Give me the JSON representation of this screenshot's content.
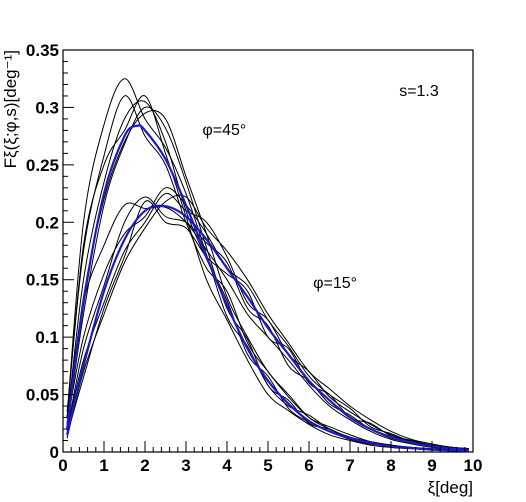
{
  "chart_data": {
    "type": "line",
    "title": "",
    "xlabel": "ξ[deg]",
    "ylabel": "Fξ(ξ;φ,s)[deg⁻¹]",
    "xlim": [
      0,
      10
    ],
    "ylim": [
      0,
      0.35
    ],
    "grid": false,
    "x_ticks": [
      "0",
      "1",
      "2",
      "3",
      "4",
      "5",
      "6",
      "7",
      "8",
      "9",
      "10"
    ],
    "y_ticks": [
      "0",
      "0.05",
      "0.1",
      "0.15",
      "0.2",
      "0.25",
      "0.3",
      "0.35"
    ],
    "annotations": [
      {
        "text": "s=1.3",
        "x": 8.2,
        "y": 0.31
      },
      {
        "text": "φ=45°",
        "x": 3.4,
        "y": 0.276
      },
      {
        "text": "φ=15°",
        "x": 6.1,
        "y": 0.143
      }
    ],
    "series": [
      {
        "color": "#1a1acc",
        "width": 2.2,
        "group": "mean-45",
        "x": [
          0.1,
          0.5,
          1.0,
          1.5,
          1.8,
          2.0,
          2.5,
          3.0,
          3.5,
          4.0,
          4.5,
          5.0,
          5.5,
          6.0,
          6.5,
          7.0,
          7.5,
          8.0,
          8.5,
          9.0,
          9.5,
          9.9
        ],
        "y": [
          0.02,
          0.13,
          0.225,
          0.275,
          0.284,
          0.28,
          0.255,
          0.215,
          0.17,
          0.128,
          0.09,
          0.062,
          0.042,
          0.027,
          0.018,
          0.012,
          0.008,
          0.005,
          0.0035,
          0.002,
          0.0015,
          0.001
        ]
      },
      {
        "color": "#1a1acc",
        "width": 2.2,
        "group": "mean-15",
        "x": [
          0.1,
          0.5,
          1.0,
          1.5,
          2.0,
          2.5,
          3.0,
          3.5,
          4.0,
          4.5,
          5.0,
          5.5,
          6.0,
          6.5,
          7.0,
          7.5,
          8.0,
          8.5,
          9.0,
          9.5,
          9.9
        ],
        "y": [
          0.015,
          0.075,
          0.14,
          0.185,
          0.21,
          0.214,
          0.205,
          0.185,
          0.16,
          0.135,
          0.108,
          0.085,
          0.062,
          0.045,
          0.03,
          0.02,
          0.013,
          0.008,
          0.005,
          0.003,
          0.002
        ]
      },
      {
        "color": "#000000",
        "width": 1.0,
        "group": "sample-45",
        "x": [
          0.1,
          0.5,
          1.0,
          1.5,
          2.0,
          2.5,
          3.0,
          3.5,
          4.0,
          4.5,
          5.0,
          5.5,
          6.0,
          6.5,
          7.0,
          7.5,
          8.0,
          8.5,
          9.0,
          9.5,
          9.9
        ],
        "y": [
          0.03,
          0.2,
          0.285,
          0.325,
          0.29,
          0.265,
          0.225,
          0.172,
          0.118,
          0.092,
          0.058,
          0.04,
          0.032,
          0.02,
          0.013,
          0.009,
          0.006,
          0.004,
          0.0025,
          0.002,
          0.001
        ]
      },
      {
        "color": "#000000",
        "width": 1.0,
        "group": "sample-45",
        "x": [
          0.1,
          0.5,
          1.0,
          1.5,
          2.0,
          2.5,
          3.0,
          3.5,
          4.0,
          4.5,
          5.0,
          5.5,
          6.0,
          6.5,
          7.0,
          7.5,
          8.0,
          8.5,
          9.0,
          9.5,
          9.9
        ],
        "y": [
          0.025,
          0.15,
          0.235,
          0.29,
          0.305,
          0.27,
          0.21,
          0.168,
          0.132,
          0.085,
          0.066,
          0.038,
          0.026,
          0.018,
          0.011,
          0.007,
          0.005,
          0.003,
          0.002,
          0.0015,
          0.001
        ]
      },
      {
        "color": "#000000",
        "width": 1.0,
        "group": "sample-45",
        "x": [
          0.1,
          0.5,
          1.0,
          1.5,
          2.0,
          2.5,
          3.0,
          3.5,
          4.0,
          4.5,
          5.0,
          5.5,
          6.0,
          6.5,
          7.0,
          7.5,
          8.0,
          8.5,
          9.0,
          9.5,
          9.9
        ],
        "y": [
          0.02,
          0.12,
          0.215,
          0.268,
          0.3,
          0.282,
          0.235,
          0.178,
          0.125,
          0.098,
          0.058,
          0.045,
          0.025,
          0.02,
          0.012,
          0.008,
          0.004,
          0.003,
          0.002,
          0.001,
          0.001
        ]
      },
      {
        "color": "#000000",
        "width": 1.0,
        "group": "sample-45",
        "x": [
          0.1,
          0.5,
          1.0,
          1.5,
          2.0,
          2.5,
          3.0,
          3.5,
          4.0,
          4.5,
          5.0,
          5.5,
          6.0,
          6.5,
          7.0,
          7.5,
          8.0,
          8.5,
          9.0,
          9.5,
          9.9
        ],
        "y": [
          0.035,
          0.175,
          0.258,
          0.31,
          0.275,
          0.25,
          0.2,
          0.16,
          0.14,
          0.095,
          0.07,
          0.048,
          0.03,
          0.022,
          0.015,
          0.009,
          0.006,
          0.004,
          0.003,
          0.002,
          0.001
        ]
      },
      {
        "color": "#000000",
        "width": 1.0,
        "group": "sample-45",
        "x": [
          0.1,
          0.5,
          1.0,
          1.5,
          2.0,
          2.5,
          3.0,
          3.5,
          4.0,
          4.5,
          5.0,
          5.5,
          6.0,
          6.5,
          7.0,
          7.5,
          8.0,
          8.5,
          9.0,
          9.5,
          9.9
        ],
        "y": [
          0.022,
          0.135,
          0.22,
          0.27,
          0.295,
          0.29,
          0.24,
          0.19,
          0.135,
          0.1,
          0.07,
          0.05,
          0.03,
          0.02,
          0.012,
          0.009,
          0.006,
          0.004,
          0.002,
          0.0015,
          0.001
        ]
      },
      {
        "color": "#000000",
        "width": 1.0,
        "group": "sample-45",
        "x": [
          0.1,
          0.5,
          1.0,
          1.5,
          2.0,
          2.5,
          3.0,
          3.5,
          4.0,
          4.5,
          5.0,
          5.5,
          6.0,
          6.5,
          7.0,
          7.5,
          8.0,
          8.5,
          9.0,
          9.5,
          9.9
        ],
        "y": [
          0.03,
          0.18,
          0.25,
          0.28,
          0.31,
          0.26,
          0.205,
          0.15,
          0.115,
          0.08,
          0.05,
          0.036,
          0.024,
          0.015,
          0.01,
          0.006,
          0.004,
          0.003,
          0.002,
          0.001,
          0.001
        ]
      },
      {
        "color": "#000000",
        "width": 1.0,
        "group": "sample-15",
        "x": [
          0.1,
          0.5,
          1.0,
          1.5,
          2.0,
          2.5,
          3.0,
          3.5,
          4.0,
          4.5,
          5.0,
          5.5,
          6.0,
          6.5,
          7.0,
          7.5,
          8.0,
          8.5,
          9.0,
          9.5,
          9.9
        ],
        "y": [
          0.03,
          0.13,
          0.18,
          0.215,
          0.212,
          0.213,
          0.2,
          0.176,
          0.15,
          0.12,
          0.1,
          0.08,
          0.058,
          0.04,
          0.028,
          0.018,
          0.011,
          0.007,
          0.004,
          0.003,
          0.002
        ]
      },
      {
        "color": "#000000",
        "width": 1.0,
        "group": "sample-15",
        "x": [
          0.1,
          0.5,
          1.0,
          1.5,
          2.0,
          2.5,
          3.0,
          3.5,
          4.0,
          4.5,
          5.0,
          5.5,
          6.0,
          6.5,
          7.0,
          7.5,
          8.0,
          8.5,
          9.0,
          9.5,
          9.9
        ],
        "y": [
          0.02,
          0.08,
          0.13,
          0.175,
          0.2,
          0.225,
          0.21,
          0.2,
          0.17,
          0.13,
          0.115,
          0.085,
          0.07,
          0.048,
          0.035,
          0.024,
          0.015,
          0.01,
          0.006,
          0.004,
          0.003
        ]
      },
      {
        "color": "#000000",
        "width": 1.0,
        "group": "sample-15",
        "x": [
          0.1,
          0.5,
          1.0,
          1.5,
          2.0,
          2.5,
          3.0,
          3.5,
          4.0,
          4.5,
          5.0,
          5.5,
          6.0,
          6.5,
          7.0,
          7.5,
          8.0,
          8.5,
          9.0,
          9.5,
          9.9
        ],
        "y": [
          0.015,
          0.065,
          0.125,
          0.17,
          0.218,
          0.2,
          0.195,
          0.17,
          0.155,
          0.14,
          0.1,
          0.09,
          0.06,
          0.05,
          0.03,
          0.025,
          0.014,
          0.01,
          0.005,
          0.004,
          0.002
        ]
      },
      {
        "color": "#000000",
        "width": 1.0,
        "group": "sample-15",
        "x": [
          0.1,
          0.5,
          1.0,
          1.5,
          2.0,
          2.5,
          3.0,
          3.5,
          4.0,
          4.5,
          5.0,
          5.5,
          6.0,
          6.5,
          7.0,
          7.5,
          8.0,
          8.5,
          9.0,
          9.5,
          9.9
        ],
        "y": [
          0.025,
          0.1,
          0.155,
          0.19,
          0.205,
          0.23,
          0.215,
          0.19,
          0.16,
          0.145,
          0.115,
          0.092,
          0.066,
          0.05,
          0.038,
          0.022,
          0.016,
          0.009,
          0.006,
          0.004,
          0.002
        ]
      },
      {
        "color": "#000000",
        "width": 1.0,
        "group": "sample-15",
        "x": [
          0.1,
          0.5,
          1.0,
          1.5,
          2.0,
          2.5,
          3.0,
          3.5,
          4.0,
          4.5,
          5.0,
          5.5,
          6.0,
          6.5,
          7.0,
          7.5,
          8.0,
          8.5,
          9.0,
          9.5,
          9.9
        ],
        "y": [
          0.018,
          0.09,
          0.145,
          0.2,
          0.222,
          0.205,
          0.2,
          0.182,
          0.165,
          0.125,
          0.11,
          0.075,
          0.062,
          0.042,
          0.032,
          0.02,
          0.012,
          0.008,
          0.005,
          0.003,
          0.002
        ]
      },
      {
        "color": "#000000",
        "width": 1.0,
        "group": "sample-15",
        "x": [
          0.1,
          0.5,
          1.0,
          1.5,
          2.0,
          2.5,
          3.0,
          3.5,
          4.0,
          4.5,
          5.0,
          5.5,
          6.0,
          6.5,
          7.0,
          7.5,
          8.0,
          8.5,
          9.0,
          9.5,
          9.9
        ],
        "y": [
          0.012,
          0.07,
          0.12,
          0.165,
          0.195,
          0.218,
          0.222,
          0.195,
          0.175,
          0.15,
          0.12,
          0.095,
          0.07,
          0.055,
          0.04,
          0.028,
          0.018,
          0.011,
          0.007,
          0.004,
          0.003
        ]
      }
    ]
  }
}
